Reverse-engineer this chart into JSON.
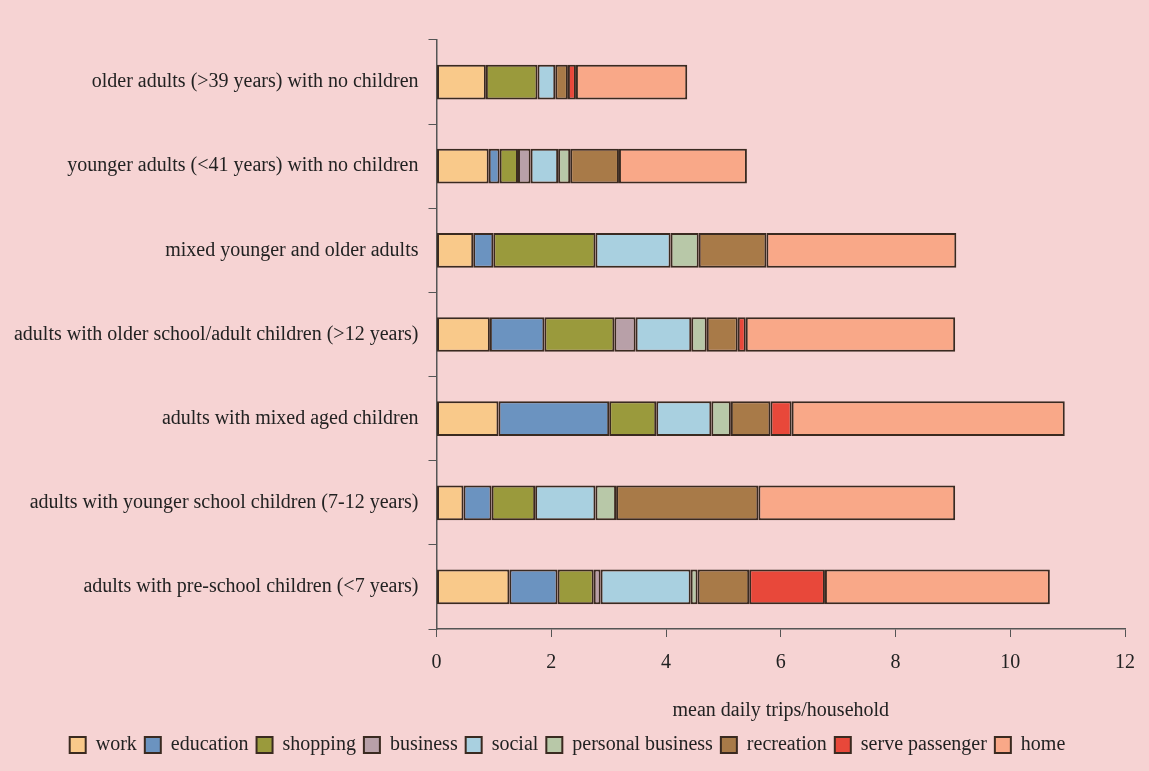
{
  "chart_data": {
    "type": "bar",
    "orientation": "horizontal",
    "stacked": true,
    "xlabel": "mean daily trips/household",
    "categories": [
      "older adults (>39 years) with no children",
      "younger adults (<41 years) with no children",
      "mixed younger and older adults",
      "adults with older school/adult children (>12 years)",
      "adults with mixed aged children",
      "adults with younger school children (7-12 years)",
      "adults with pre-school children (<7 years)"
    ],
    "series": [
      {
        "name": "work",
        "color": "#f9c98a",
        "values": [
          0.86,
          0.91,
          0.64,
          0.93,
          1.08,
          0.47,
          1.27
        ]
      },
      {
        "name": "education",
        "color": "#6b93c0",
        "values": [
          0,
          0.19,
          0.35,
          0.95,
          1.93,
          0.49,
          0.84
        ]
      },
      {
        "name": "shopping",
        "color": "#9a9a3c",
        "values": [
          0.9,
          0.32,
          1.78,
          1.22,
          0.82,
          0.76,
          0.63
        ]
      },
      {
        "name": "business",
        "color": "#b8a0a8",
        "values": [
          0,
          0.22,
          0,
          0.37,
          0,
          0,
          0.12
        ]
      },
      {
        "name": "social",
        "color": "#a9d0e0",
        "values": [
          0.31,
          0.48,
          1.31,
          0.97,
          0.96,
          1.05,
          1.57
        ]
      },
      {
        "name": "personal business",
        "color": "#b8c8a8",
        "values": [
          0,
          0.21,
          0.49,
          0.27,
          0.34,
          0.36,
          0.12
        ]
      },
      {
        "name": "recreation",
        "color": "#a87a48",
        "values": [
          0.22,
          0.85,
          1.18,
          0.54,
          0.69,
          2.48,
          0.9
        ]
      },
      {
        "name": "serve passenger",
        "color": "#e8483a",
        "values": [
          0.14,
          0,
          0,
          0.14,
          0.37,
          0,
          1.32
        ]
      },
      {
        "name": "home",
        "color": "#f9a888",
        "values": [
          1.94,
          2.23,
          3.31,
          3.65,
          4.76,
          3.43,
          3.92
        ]
      }
    ],
    "xlim": [
      0,
      12
    ],
    "xticks": [
      0,
      2,
      4,
      6,
      8,
      10,
      12
    ],
    "grid": false,
    "legend": "bottom"
  }
}
